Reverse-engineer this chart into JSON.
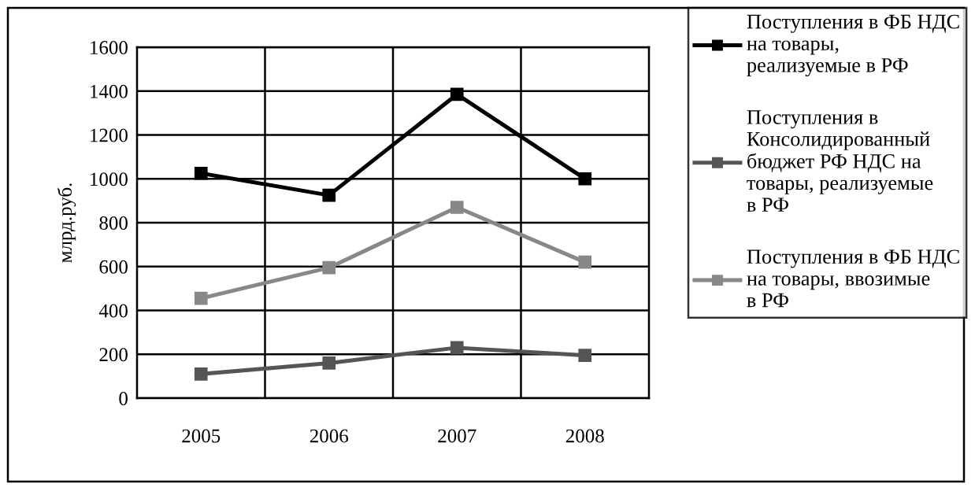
{
  "chart_data": {
    "type": "line",
    "ylabel": "млрд.руб.",
    "categories": [
      "2005",
      "2006",
      "2007",
      "2008"
    ],
    "series": [
      {
        "name": "Поступления в ФБ НДС на товары, реализуемые в РФ",
        "color": "#000000",
        "values": [
          1025,
          925,
          1385,
          1000
        ]
      },
      {
        "name": "Поступления в Консолидированный бюджет РФ НДС на товары, реализуемые в РФ",
        "color": "#555555",
        "values": [
          110,
          160,
          230,
          195
        ]
      },
      {
        "name": "Поступления в ФБ НДС на товары, ввозимые в РФ",
        "color": "#888888",
        "values": [
          455,
          595,
          870,
          620
        ]
      }
    ],
    "ylim": [
      0,
      1600
    ],
    "yticks": [
      0,
      200,
      400,
      600,
      800,
      1000,
      1200,
      1400,
      1600
    ],
    "grid": true,
    "legend": "right",
    "marker": "square",
    "line_style": "solid"
  }
}
